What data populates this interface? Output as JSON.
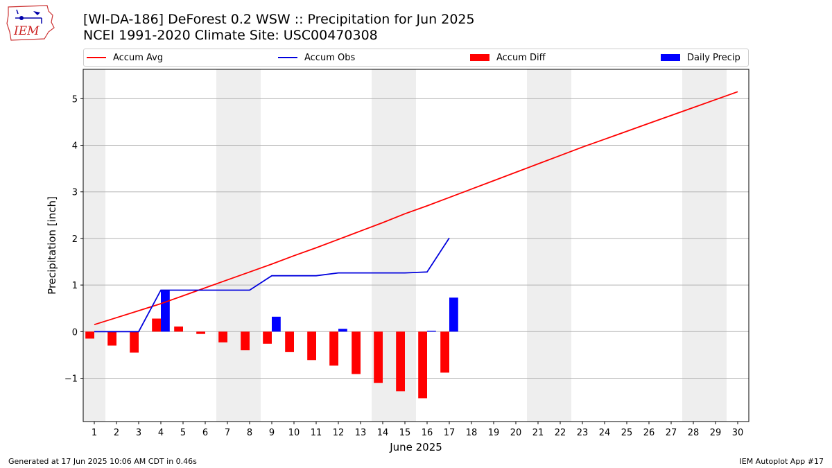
{
  "header": {
    "title_line1": "[WI-DA-186] DeForest 0.2 WSW :: Precipitation for Jun 2025",
    "title_line2": "NCEI 1991-2020 Climate Site: USC00470308",
    "logo_text": "IEM"
  },
  "footer": {
    "left": "Generated at 17 Jun 2025 10:06 AM CDT in 0.46s",
    "right": "IEM Autoplot App #17"
  },
  "legend": [
    {
      "label": "Accum Avg",
      "kind": "line",
      "color": "#ff0000"
    },
    {
      "label": "Accum Obs",
      "kind": "line",
      "color": "#0000dd"
    },
    {
      "label": "Accum Diff",
      "kind": "box",
      "color": "#ff0000"
    },
    {
      "label": "Daily Precip",
      "kind": "box",
      "color": "#0000ff"
    }
  ],
  "colors": {
    "avg": "#ff0000",
    "obs": "#0000dd",
    "diff": "#ff0000",
    "daily": "#0000ff",
    "weekend": "#eeeeee",
    "grid": "#b0b0b0"
  },
  "chart_data": {
    "type": "bar",
    "xlabel": "June 2025",
    "ylabel": "Precipitation [inch]",
    "xlim": [
      0.5,
      30.5
    ],
    "ylim": [
      -1.93,
      5.63
    ],
    "yticks": [
      -1,
      0,
      1,
      2,
      3,
      4,
      5
    ],
    "ytick_labels": [
      "−1",
      "0",
      "1",
      "2",
      "3",
      "4",
      "5"
    ],
    "grid": "horizontal",
    "legend_position": "top",
    "days": [
      1,
      2,
      3,
      4,
      5,
      6,
      7,
      8,
      9,
      10,
      11,
      12,
      13,
      14,
      15,
      16,
      17,
      18,
      19,
      20,
      21,
      22,
      23,
      24,
      25,
      26,
      27,
      28,
      29,
      30
    ],
    "weekend_days": [
      1,
      7,
      8,
      14,
      15,
      21,
      22,
      28,
      29
    ],
    "series": [
      {
        "name": "Accum Avg",
        "type": "line",
        "x": [
          1,
          2,
          3,
          4,
          5,
          6,
          7,
          8,
          9,
          10,
          11,
          12,
          13,
          14,
          15,
          16,
          17,
          18,
          19,
          20,
          21,
          22,
          23,
          24,
          25,
          26,
          27,
          28,
          29,
          30
        ],
        "values": [
          0.15,
          0.3,
          0.45,
          0.6,
          0.77,
          0.94,
          1.11,
          1.28,
          1.45,
          1.63,
          1.8,
          1.98,
          2.16,
          2.34,
          2.53,
          2.7,
          2.88,
          3.06,
          3.24,
          3.42,
          3.6,
          3.78,
          3.96,
          4.13,
          4.3,
          4.47,
          4.64,
          4.81,
          4.98,
          5.15
        ]
      },
      {
        "name": "Accum Obs",
        "type": "line",
        "x": [
          1,
          2,
          3,
          4,
          5,
          6,
          7,
          8,
          9,
          10,
          11,
          12,
          13,
          14,
          15,
          16,
          17
        ],
        "values": [
          0.0,
          0.0,
          0.0,
          0.89,
          0.89,
          0.89,
          0.89,
          0.89,
          1.2,
          1.2,
          1.2,
          1.26,
          1.26,
          1.26,
          1.26,
          1.28,
          2.01
        ]
      },
      {
        "name": "Accum Diff",
        "type": "bar",
        "x": [
          1,
          2,
          3,
          4,
          5,
          6,
          7,
          8,
          9,
          10,
          11,
          12,
          13,
          14,
          15,
          16,
          17
        ],
        "values": [
          -0.15,
          -0.3,
          -0.45,
          0.28,
          0.11,
          -0.05,
          -0.23,
          -0.4,
          -0.26,
          -0.44,
          -0.61,
          -0.73,
          -0.91,
          -1.1,
          -1.28,
          -1.43,
          -0.88
        ]
      },
      {
        "name": "Daily Precip",
        "type": "bar",
        "x": [
          1,
          2,
          3,
          4,
          5,
          6,
          7,
          8,
          9,
          10,
          11,
          12,
          13,
          14,
          15,
          16,
          17
        ],
        "values": [
          0.0,
          0.0,
          0.0,
          0.89,
          0.0,
          0.0,
          0.0,
          0.0,
          0.32,
          0.0,
          0.0,
          0.06,
          0.0,
          0.0,
          0.0,
          0.02,
          0.73
        ]
      }
    ]
  }
}
